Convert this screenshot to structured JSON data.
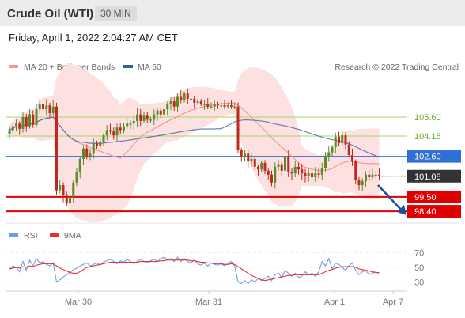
{
  "header": {
    "title": "Crude Oil (WTI)",
    "interval": "30 MIN"
  },
  "datetime": "Friday, April 1, 2022 2:04:27 AM CET",
  "legend": {
    "ma20_bb": "MA 20 + Bollinger Bands",
    "ma50": "MA 50",
    "credit": "Research © 2022 Trading Central",
    "rsi": "RSI",
    "ma9": "9MA"
  },
  "colors": {
    "candle_up": "#5a8a2a",
    "candle_down": "#c0281c",
    "bb_fill": "#fde0e0",
    "ma20": "#ef9a9a",
    "ma50": "#3d5a9e",
    "resistance": "#a5d66a",
    "support": "#e00000",
    "pivot": "#2f6fd6",
    "current": "#333333",
    "arrow": "#1e4f9c",
    "rsi": "#6f9ee8",
    "rsi_ma": "#e83030"
  },
  "chart_data": [
    {
      "type": "candlestick",
      "title": "Crude Oil (WTI) 30 MIN",
      "x_ticks": [
        "Mar 30",
        "Mar 31",
        "Apr 1",
        "Apr 7"
      ],
      "ylim": [
        97.5,
        108.5
      ],
      "levels": [
        {
          "value": 105.6,
          "label": "105.60",
          "kind": "resistance"
        },
        {
          "value": 104.15,
          "label": "104.15",
          "kind": "resistance"
        },
        {
          "value": 102.6,
          "label": "102.60",
          "kind": "pivot"
        },
        {
          "value": 101.08,
          "label": "101.08",
          "kind": "current"
        },
        {
          "value": 99.5,
          "label": "99.50",
          "kind": "support"
        },
        {
          "value": 98.4,
          "label": "98.40",
          "kind": "support"
        }
      ],
      "close": [
        104.6,
        104.9,
        105.1,
        104.7,
        105.6,
        104.9,
        105.8,
        105.0,
        106.2,
        106.6,
        106.2,
        106.5,
        105.9,
        106.4,
        100.0,
        100.4,
        99.6,
        99.0,
        99.5,
        100.6,
        101.4,
        102.4,
        103.2,
        102.6,
        102.8,
        103.6,
        103.4,
        103.7,
        104.2,
        104.6,
        104.5,
        104.2,
        104.8,
        104.6,
        104.9,
        105.1,
        105.1,
        105.3,
        105.8,
        105.3,
        105.7,
        105.4,
        105.4,
        105.8,
        106.1,
        105.8,
        106.2,
        106.6,
        106.8,
        106.4,
        107.2,
        106.9,
        107.4,
        107.0,
        107.0,
        106.7,
        106.8,
        106.6,
        106.6,
        106.4,
        106.4,
        106.6,
        106.5,
        106.5,
        106.4,
        106.5,
        106.4,
        106.4,
        103.1,
        102.6,
        102.8,
        102.2,
        102.4,
        101.8,
        101.6,
        102.1,
        101.5,
        101.2,
        100.6,
        101.8,
        102.0,
        101.5,
        102.6,
        101.4,
        101.3,
        101.8,
        101.6,
        101.3,
        101.1,
        101.3,
        101.0,
        101.3,
        101.2,
        101.7,
        102.6,
        102.9,
        103.3,
        104.1,
        103.6,
        104.2,
        103.5,
        102.7,
        102.2,
        100.8,
        100.4,
        100.7,
        101.2,
        101.0,
        101.2,
        101.2,
        101.1
      ]
    },
    {
      "type": "line",
      "title": "RSI",
      "x_ticks": [
        "Mar 30",
        "Mar 31",
        "Apr 1",
        "Apr 7"
      ],
      "ylim": [
        22,
        78
      ],
      "y_ticks": [
        70,
        50,
        30
      ],
      "series": [
        {
          "name": "RSI",
          "values": [
            48,
            52,
            50,
            44,
            58,
            46,
            60,
            52,
            62,
            56,
            58,
            54,
            52,
            56,
            30,
            33,
            37,
            40,
            43,
            47,
            49,
            52,
            54,
            56,
            52,
            54,
            56,
            53,
            57,
            59,
            61,
            58,
            55,
            59,
            57,
            61,
            58,
            55,
            58,
            61,
            58,
            56,
            59,
            61,
            58,
            62,
            64,
            60,
            62,
            58,
            64,
            58,
            62,
            58,
            56,
            60,
            55,
            53,
            56,
            52,
            56,
            54,
            53,
            55,
            52,
            56,
            58,
            52,
            30,
            28,
            32,
            28,
            33,
            30,
            35,
            32,
            35,
            38,
            32,
            40,
            42,
            36,
            46,
            42,
            38,
            42,
            36,
            38,
            44,
            40,
            42,
            38,
            44,
            58,
            52,
            62,
            48,
            56,
            54,
            50,
            46,
            52,
            56,
            46,
            40,
            44,
            46,
            40,
            42,
            44,
            41
          ]
        },
        {
          "name": "9MA",
          "values": [
            48,
            49,
            50,
            49,
            51,
            50,
            52,
            51,
            53,
            54,
            55,
            55,
            55,
            55,
            52,
            49,
            47,
            45,
            43,
            42,
            42,
            44,
            47,
            50,
            51,
            52,
            53,
            54,
            55,
            56,
            57,
            57,
            57,
            57,
            57,
            57,
            57,
            57,
            57,
            58,
            58,
            58,
            58,
            58,
            58,
            59,
            59,
            60,
            60,
            60,
            60,
            60,
            60,
            60,
            59,
            59,
            58,
            57,
            57,
            56,
            56,
            55,
            55,
            55,
            54,
            54,
            55,
            54,
            51,
            48,
            45,
            42,
            39,
            37,
            35,
            33,
            32,
            33,
            34,
            35,
            36,
            37,
            38,
            39,
            39,
            40,
            40,
            40,
            40,
            40,
            40,
            40,
            40,
            42,
            44,
            46,
            47,
            49,
            50,
            51,
            51,
            51,
            51,
            50,
            48,
            47,
            46,
            45,
            44,
            43,
            43
          ]
        }
      ]
    }
  ]
}
